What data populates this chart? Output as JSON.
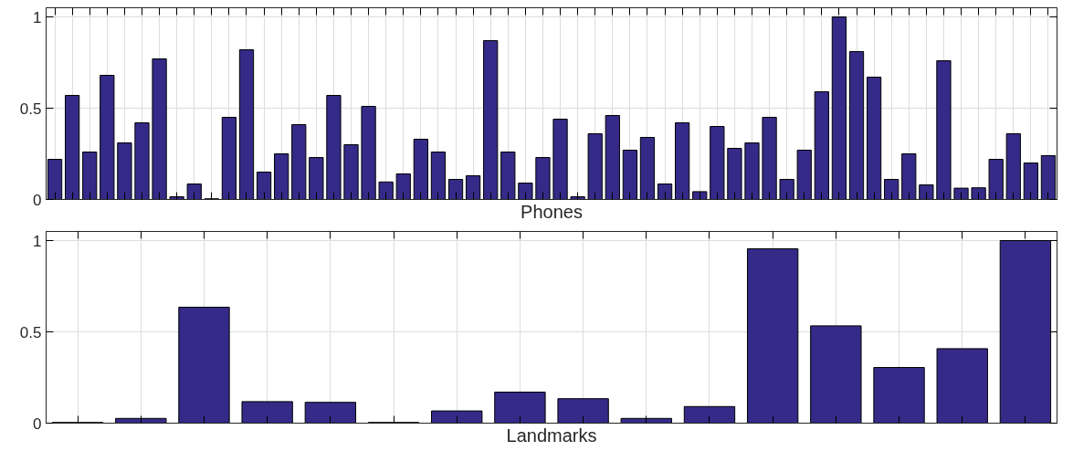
{
  "chart_data": [
    {
      "type": "bar",
      "xlabel": "Phones",
      "categories": [
        null,
        null,
        null,
        null,
        null,
        null,
        null,
        null,
        null,
        null,
        null,
        null,
        null,
        null,
        null,
        null,
        null,
        null,
        null,
        null,
        null,
        null,
        null,
        null,
        null,
        null,
        null,
        null,
        null,
        null,
        null,
        null,
        null,
        null,
        null,
        null,
        null,
        null,
        null,
        null,
        null,
        null,
        null,
        null,
        null,
        null,
        null,
        null,
        null,
        null,
        null,
        null,
        null,
        null,
        null,
        null,
        null,
        null
      ],
      "values": [
        0.22,
        0.57,
        0.26,
        0.68,
        0.31,
        0.42,
        0.77,
        0.015,
        0.085,
        0.004,
        0.45,
        0.82,
        0.15,
        0.25,
        0.41,
        0.23,
        0.57,
        0.3,
        0.51,
        0.096,
        0.14,
        0.33,
        0.26,
        0.11,
        0.13,
        0.87,
        0.26,
        0.09,
        0.23,
        0.44,
        0.015,
        0.36,
        0.46,
        0.27,
        0.34,
        0.085,
        0.42,
        0.043,
        0.4,
        0.28,
        0.31,
        0.45,
        0.11,
        0.27,
        0.59,
        1.0,
        0.81,
        0.67,
        0.11,
        0.25,
        0.08,
        0.76,
        0.062,
        0.064,
        0.22,
        0.36,
        0.2,
        0.24
      ],
      "color": "#352a87",
      "ylim": [
        0,
        1.05
      ],
      "yticks": [
        0,
        0.5,
        1
      ],
      "grid": true,
      "tick_labels": "y"
    },
    {
      "type": "bar",
      "xlabel": "Landmarks",
      "categories": [
        null,
        null,
        null,
        null,
        null,
        null,
        null,
        null,
        null,
        null,
        null,
        null,
        null,
        null,
        null,
        null
      ],
      "values": [
        0.004,
        0.026,
        0.635,
        0.118,
        0.114,
        0.004,
        0.067,
        0.17,
        0.134,
        0.026,
        0.091,
        0.955,
        0.533,
        0.305,
        0.408,
        1.0
      ],
      "color": "#352a87",
      "ylim": [
        0,
        1.05
      ],
      "yticks": [
        0,
        0.5,
        1
      ],
      "grid": true,
      "tick_labels": "y"
    }
  ]
}
